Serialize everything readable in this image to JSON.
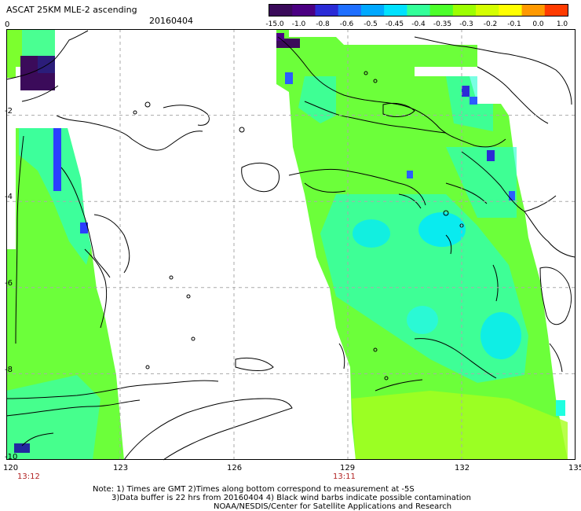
{
  "header": {
    "title": "ASCAT 25KM MLE-2 ascending",
    "date": "20160404"
  },
  "colorbar": {
    "labels": [
      "-15.0",
      "-1.0",
      "-0.8",
      "-0.6",
      "-0.5",
      "-0.45",
      "-0.4",
      "-0.35",
      "-0.3",
      "-0.2",
      "-0.1",
      "0.0",
      "1.0"
    ],
    "colors": [
      "#3a0a5a",
      "#4b0082",
      "#2b2bd6",
      "#1f6fff",
      "#00a8ff",
      "#00e1ff",
      "#33ff99",
      "#4cff2a",
      "#9cff00",
      "#d4ff00",
      "#ffff00",
      "#ff9900",
      "#ff3b00"
    ]
  },
  "map": {
    "lat_labels": [
      "0",
      "-2",
      "-4",
      "-6",
      "-8",
      "-10"
    ],
    "lon_labels": [
      "120",
      "123",
      "126",
      "129",
      "132",
      "135"
    ],
    "time_labels": [
      "13:12",
      "13:11"
    ]
  },
  "footer": {
    "note_line1": "Note: 1) Times are GMT 2)Times along bottom correspond to measurement at -5S",
    "note_line2": "3)Data buffer is 22 hrs from 20160404 4) Black wind barbs indicate possible contamination",
    "credit": "NOAA/NESDIS/Center for Satellite Applications and Research"
  }
}
